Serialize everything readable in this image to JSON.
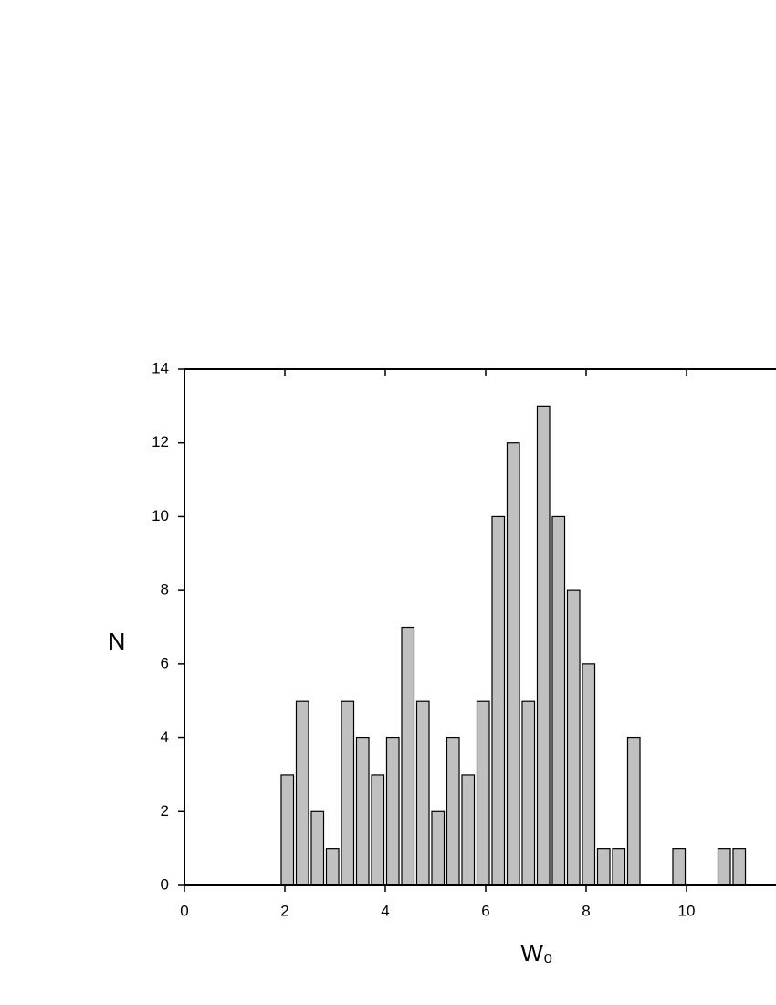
{
  "chart_data": {
    "type": "histogram",
    "x_label": "W₀",
    "y_label": "N",
    "bins": [
      1.9,
      2.2,
      2.5,
      2.8,
      3.1,
      3.4,
      3.7,
      4.0,
      4.3,
      4.6,
      4.9,
      5.2,
      5.5,
      5.8,
      6.1,
      6.4,
      6.7,
      7.0,
      7.3,
      7.6,
      7.9,
      8.2,
      8.5,
      8.8,
      9.1,
      9.4,
      9.7,
      10.0,
      10.3,
      10.6,
      10.9,
      11.2
    ],
    "values": [
      3,
      5,
      2,
      1,
      5,
      4,
      3,
      4,
      7,
      5,
      2,
      4,
      3,
      5,
      10,
      12,
      5,
      13,
      10,
      8,
      6,
      1,
      1,
      4,
      0,
      0,
      1,
      0,
      0,
      1,
      1
    ],
    "color": "#c0c0c0",
    "xlim": [
      0,
      11.78
    ],
    "xticks": [
      0,
      2,
      4,
      6,
      8,
      10
    ],
    "ylim": [
      0,
      14
    ],
    "yticks": [
      0,
      2,
      4,
      6,
      8,
      10,
      12,
      14
    ]
  }
}
